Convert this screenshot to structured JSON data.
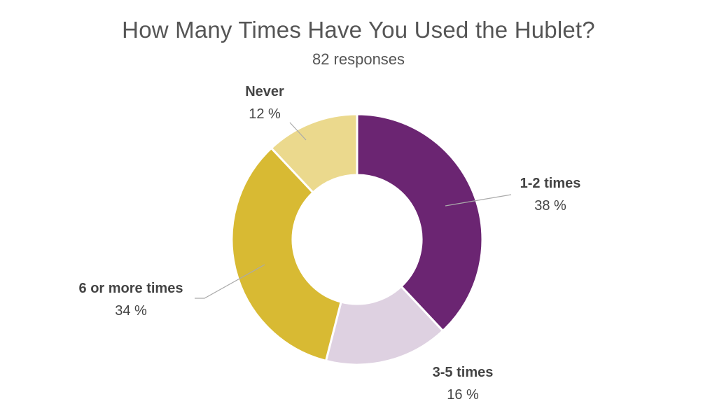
{
  "chart_data": {
    "type": "pie",
    "title": "How Many Times Have You Used the Hublet?",
    "subtitle": "82 responses",
    "unit": "%",
    "slices": [
      {
        "label": "1-2 times",
        "value": 38,
        "display": "38 %",
        "color": "#6b2572"
      },
      {
        "label": "3-5 times",
        "value": 16,
        "display": "16 %",
        "color": "#ded1e1"
      },
      {
        "label": "6 or more times",
        "value": 34,
        "display": "34 %",
        "color": "#d8ba33"
      },
      {
        "label": "Never",
        "value": 12,
        "display": "12 %",
        "color": "#ebd98d"
      }
    ]
  }
}
